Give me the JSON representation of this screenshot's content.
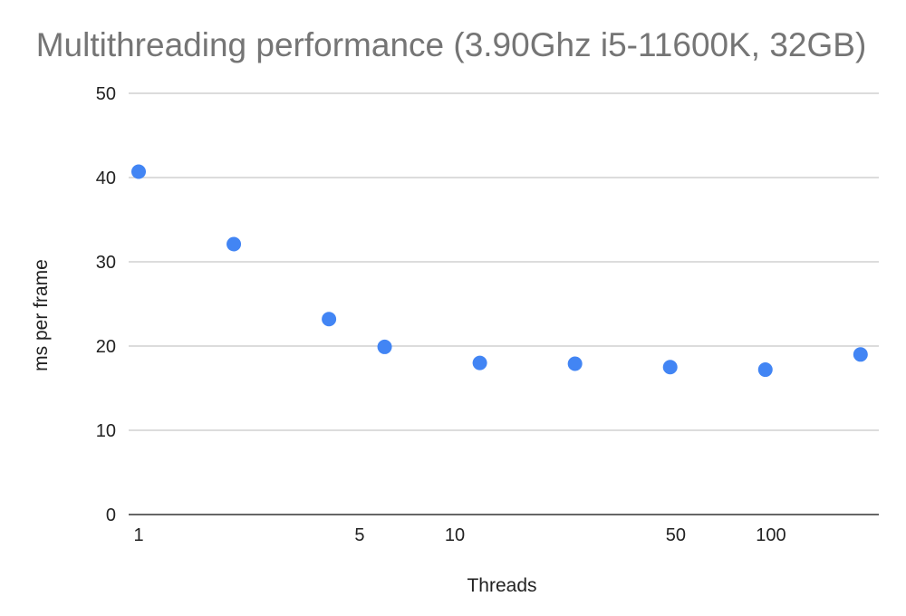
{
  "chart_data": {
    "type": "scatter",
    "title": "Multithreading performance (3.90Ghz i5-11600K, 32GB)",
    "xlabel": "Threads",
    "ylabel": "ms per frame",
    "xscale": "log",
    "xlim": [
      1,
      200
    ],
    "ylim": [
      0,
      50
    ],
    "xticks": [
      1,
      5,
      10,
      50,
      100
    ],
    "yticks": [
      0,
      10,
      20,
      30,
      40,
      50
    ],
    "grid": true,
    "legend": "none",
    "marker_color": "#4285f4",
    "points": [
      {
        "x": 1,
        "y": 40.7
      },
      {
        "x": 2,
        "y": 32.1
      },
      {
        "x": 4,
        "y": 23.2
      },
      {
        "x": 6,
        "y": 19.9
      },
      {
        "x": 12,
        "y": 18.0
      },
      {
        "x": 24,
        "y": 17.9
      },
      {
        "x": 48,
        "y": 17.5
      },
      {
        "x": 96,
        "y": 17.2
      },
      {
        "x": 192,
        "y": 19.0
      }
    ]
  }
}
